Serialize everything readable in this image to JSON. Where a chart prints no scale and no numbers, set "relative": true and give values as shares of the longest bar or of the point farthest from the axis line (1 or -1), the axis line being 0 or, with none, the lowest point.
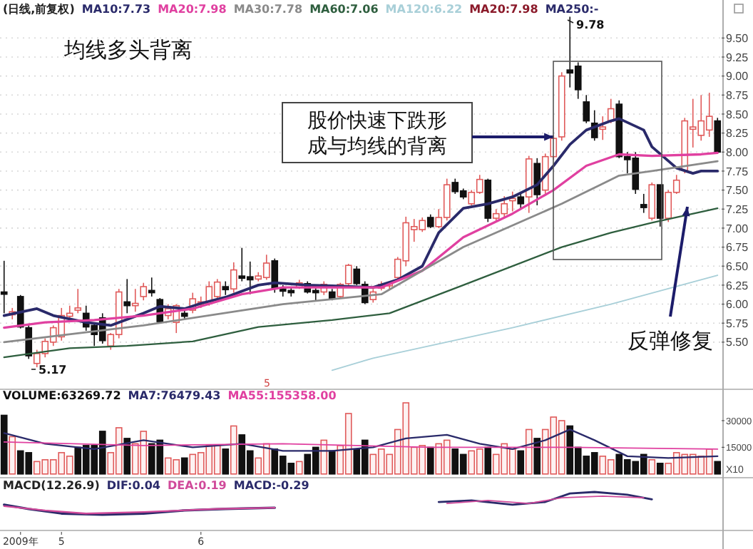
{
  "chart_data": [
    {
      "type": "candlestick",
      "categories": [
        null,
        null,
        null,
        null,
        null,
        null,
        null,
        null,
        null,
        null,
        null,
        null,
        null,
        null,
        null,
        null,
        null,
        null,
        null,
        null,
        null,
        null,
        null,
        null,
        null,
        null,
        null,
        null,
        null,
        null,
        null,
        null,
        null,
        null,
        null,
        null,
        null,
        null,
        null,
        null,
        null,
        null,
        null,
        null,
        null,
        null,
        null,
        null,
        null,
        null,
        null,
        null,
        null,
        null,
        null,
        null,
        null,
        null,
        null,
        null,
        null,
        null,
        null,
        null,
        null,
        null,
        null,
        null,
        null,
        null,
        null,
        null,
        null,
        null,
        null,
        null,
        null,
        null,
        null,
        null,
        null,
        null,
        null,
        null,
        null,
        null,
        null,
        null
      ],
      "ylim": [
        4.88,
        10.0
      ],
      "yticks": [
        {
          "value": 5.5,
          "label": "5.50"
        },
        {
          "value": 5.75,
          "label": "5.75"
        },
        {
          "value": 6,
          "label": "6.00"
        },
        {
          "value": 6.25,
          "label": "6.25"
        },
        {
          "value": 6.5,
          "label": "6.50"
        },
        {
          "value": 6.75,
          "label": "6.75"
        },
        {
          "value": 7,
          "label": "7.00"
        },
        {
          "value": 7.25,
          "label": "7.25"
        },
        {
          "value": 7.5,
          "label": "7.50"
        },
        {
          "value": 7.75,
          "label": "7.75"
        },
        {
          "value": 8,
          "label": "8.00"
        },
        {
          "value": 8.25,
          "label": "8.25"
        },
        {
          "value": 8.5,
          "label": "8.50"
        },
        {
          "value": 8.75,
          "label": "8.75"
        },
        {
          "value": 9,
          "label": "9.00"
        },
        {
          "value": 9.25,
          "label": "9.25"
        },
        {
          "value": 9.5,
          "label": "9.50"
        }
      ],
      "tick_labels": "y",
      "grid": "y",
      "legend": "top left",
      "ohlc": [
        [
          6.16,
          6.57,
          5.88,
          6.13
        ],
        [
          5.86,
          5.95,
          5.8,
          5.9
        ],
        [
          6.1,
          6.12,
          5.68,
          5.7
        ],
        [
          5.69,
          5.72,
          5.28,
          5.32
        ],
        [
          5.22,
          5.4,
          5.17,
          5.35
        ],
        [
          5.35,
          5.55,
          5.3,
          5.51
        ],
        [
          5.5,
          5.72,
          5.45,
          5.69
        ],
        [
          5.57,
          5.95,
          5.52,
          5.85
        ],
        [
          5.84,
          5.98,
          5.78,
          5.88
        ],
        [
          5.92,
          6.2,
          5.88,
          5.95
        ],
        [
          5.88,
          5.98,
          5.65,
          5.7
        ],
        [
          5.72,
          5.75,
          5.45,
          5.6
        ],
        [
          5.82,
          5.88,
          5.48,
          5.52
        ],
        [
          5.45,
          5.62,
          5.4,
          5.6
        ],
        [
          5.6,
          6.2,
          5.55,
          6.16
        ],
        [
          6.03,
          6.33,
          5.88,
          5.98
        ],
        [
          5.98,
          6.2,
          5.9,
          6.01
        ],
        [
          6.1,
          6.28,
          6.05,
          6.23
        ],
        [
          6.18,
          6.35,
          6.1,
          6.15
        ],
        [
          6.06,
          6.08,
          5.75,
          5.77
        ],
        [
          5.85,
          6.0,
          5.8,
          5.94
        ],
        [
          5.76,
          6.0,
          5.62,
          5.98
        ],
        [
          5.88,
          5.92,
          5.8,
          5.84
        ],
        [
          5.92,
          6.15,
          5.88,
          6.07
        ],
        [
          5.99,
          6.1,
          5.95,
          6.03
        ],
        [
          6.01,
          6.3,
          5.98,
          6.23
        ],
        [
          6.1,
          6.33,
          6.05,
          6.29
        ],
        [
          6.23,
          6.3,
          6.12,
          6.19
        ],
        [
          6.2,
          6.55,
          6.15,
          6.45
        ],
        [
          6.37,
          6.74,
          6.3,
          6.34
        ],
        [
          6.36,
          6.56,
          6.13,
          6.32
        ],
        [
          6.33,
          6.42,
          6.3,
          6.37
        ],
        [
          6.35,
          6.65,
          6.32,
          6.54
        ],
        [
          6.57,
          6.6,
          6.15,
          6.2
        ],
        [
          6.2,
          6.25,
          6.1,
          6.17
        ],
        [
          6.18,
          6.22,
          6.1,
          6.15
        ],
        [
          6.22,
          6.32,
          6.2,
          6.28
        ],
        [
          6.27,
          6.3,
          6.14,
          6.16
        ],
        [
          6.18,
          6.25,
          6.05,
          6.15
        ],
        [
          6.16,
          6.3,
          6.12,
          6.26
        ],
        [
          6.16,
          6.2,
          6.05,
          6.07
        ],
        [
          6.1,
          6.28,
          6.08,
          6.26
        ],
        [
          6.27,
          6.53,
          6.25,
          6.51
        ],
        [
          6.46,
          6.5,
          6.25,
          6.27
        ],
        [
          6.26,
          6.3,
          6.0,
          6.02
        ],
        [
          6.06,
          6.2,
          6.02,
          6.16
        ],
        [
          6.21,
          6.3,
          6.18,
          6.26
        ],
        [
          6.24,
          6.3,
          6.2,
          6.27
        ],
        [
          6.35,
          6.62,
          6.32,
          6.59
        ],
        [
          6.57,
          7.15,
          6.5,
          7.07
        ],
        [
          6.98,
          7.12,
          6.82,
          7.02
        ],
        [
          6.98,
          7.14,
          6.95,
          7.1
        ],
        [
          7.14,
          7.18,
          7.0,
          7.02
        ],
        [
          7.02,
          7.25,
          7.0,
          7.14
        ],
        [
          7.14,
          7.65,
          7.1,
          7.57
        ],
        [
          7.6,
          7.65,
          7.45,
          7.48
        ],
        [
          7.49,
          7.52,
          7.38,
          7.41
        ],
        [
          7.32,
          7.5,
          7.3,
          7.47
        ],
        [
          7.47,
          7.7,
          7.45,
          7.64
        ],
        [
          7.63,
          7.65,
          7.08,
          7.13
        ],
        [
          7.13,
          7.25,
          7.1,
          7.19
        ],
        [
          7.19,
          7.42,
          7.15,
          7.32
        ],
        [
          7.36,
          7.48,
          7.22,
          7.39
        ],
        [
          7.41,
          7.45,
          7.25,
          7.32
        ],
        [
          7.41,
          7.95,
          7.2,
          7.91
        ],
        [
          7.85,
          7.92,
          7.3,
          7.44
        ],
        [
          7.5,
          7.98,
          7.45,
          7.94
        ],
        [
          7.94,
          8.22,
          7.9,
          8.18
        ],
        [
          8.2,
          9.05,
          8.15,
          9.0
        ],
        [
          9.08,
          9.78,
          8.85,
          9.04
        ],
        [
          9.13,
          9.18,
          8.7,
          8.82
        ],
        [
          8.66,
          8.75,
          8.38,
          8.41
        ],
        [
          8.38,
          8.55,
          8.15,
          8.19
        ],
        [
          8.3,
          8.47,
          8.16,
          8.33
        ],
        [
          8.41,
          8.7,
          8.38,
          8.57
        ],
        [
          8.63,
          8.68,
          7.92,
          7.94
        ],
        [
          7.94,
          8.0,
          7.72,
          7.9
        ],
        [
          7.92,
          8.0,
          7.45,
          7.51
        ],
        [
          7.31,
          7.45,
          7.2,
          7.27
        ],
        [
          7.13,
          7.6,
          7.1,
          7.57
        ],
        [
          7.57,
          7.57,
          7.02,
          7.13
        ],
        [
          7.13,
          7.5,
          7.08,
          7.47
        ],
        [
          7.47,
          7.7,
          7.45,
          7.63
        ],
        [
          7.76,
          8.45,
          7.72,
          8.41
        ],
        [
          8.3,
          8.7,
          8.06,
          8.33
        ],
        [
          8.22,
          8.75,
          8.15,
          8.41
        ],
        [
          8.29,
          8.78,
          8.2,
          8.47
        ],
        [
          8.41,
          8.45,
          7.98,
          8.0
        ]
      ],
      "colors": [
        "#111111",
        "#e05a5a",
        "#111111",
        "#111111",
        "#e05a5a",
        "#e05a5a",
        "#e05a5a",
        "#e05a5a",
        "#e05a5a",
        "#e05a5a",
        "#111111",
        "#111111",
        "#111111",
        "#e05a5a",
        "#e05a5a",
        "#111111",
        "#e05a5a",
        "#e05a5a",
        "#111111",
        "#111111",
        "#e05a5a",
        "#e05a5a",
        "#111111",
        "#e05a5a",
        "#e05a5a",
        "#e05a5a",
        "#e05a5a",
        "#111111",
        "#e05a5a",
        "#111111",
        "#111111",
        "#e05a5a",
        "#e05a5a",
        "#111111",
        "#111111",
        "#111111",
        "#e05a5a",
        "#111111",
        "#111111",
        "#e05a5a",
        "#111111",
        "#e05a5a",
        "#e05a5a",
        "#111111",
        "#111111",
        "#e05a5a",
        "#e05a5a",
        "#e05a5a",
        "#e05a5a",
        "#e05a5a",
        "#e05a5a",
        "#e05a5a",
        "#111111",
        "#e05a5a",
        "#e05a5a",
        "#111111",
        "#111111",
        "#e05a5a",
        "#e05a5a",
        "#111111",
        "#e05a5a",
        "#e05a5a",
        "#e05a5a",
        "#111111",
        "#e05a5a",
        "#111111",
        "#e05a5a",
        "#e05a5a",
        "#e05a5a",
        "#111111",
        "#111111",
        "#111111",
        "#111111",
        "#e05a5a",
        "#e05a5a",
        "#111111",
        "#111111",
        "#111111",
        "#111111",
        "#e05a5a",
        "#111111",
        "#e05a5a",
        "#e05a5a",
        "#e05a5a",
        "#e05a5a",
        "#e05a5a",
        "#e05a5a",
        "#111111"
      ],
      "series": [
        {
          "type": "line",
          "name": "MA10:7.73",
          "color": "#2a2a6a",
          "values": [
            5.85,
            null,
            null,
            null,
            5.94,
            null,
            5.85,
            null,
            null,
            null,
            5.76,
            null,
            null,
            5.72,
            null,
            null,
            null,
            5.88,
            null,
            5.97,
            null,
            null,
            5.94,
            null,
            6.01,
            null,
            null,
            6.09,
            null,
            null,
            null,
            6.25,
            null,
            6.28,
            null,
            null,
            null,
            6.25,
            null,
            null,
            6.24,
            null,
            null,
            null,
            null,
            6.22,
            null,
            null,
            6.32,
            null,
            null,
            6.5,
            null,
            6.94,
            null,
            null,
            7.26,
            null,
            null,
            7.32,
            null,
            null,
            7.41,
            null,
            null,
            7.57,
            null,
            7.82,
            null,
            8.1,
            null,
            8.29,
            null,
            null,
            8.41,
            8.44,
            null,
            null,
            8.29,
            8.07,
            null,
            null,
            7.79,
            null,
            7.72,
            7.75,
            null,
            7.75
          ]
        },
        {
          "type": "line",
          "name": "MA20:7.98",
          "color": "#e040a0",
          "values": [
            5.69,
            null,
            null,
            null,
            null,
            5.76,
            null,
            null,
            null,
            null,
            null,
            5.79,
            null,
            null,
            null,
            null,
            null,
            5.85,
            null,
            null,
            null,
            null,
            null,
            5.94,
            null,
            null,
            null,
            null,
            null,
            6.13,
            null,
            null,
            null,
            null,
            6.22,
            null,
            null,
            null,
            null,
            null,
            6.22,
            null,
            null,
            null,
            null,
            null,
            6.22,
            null,
            null,
            null,
            null,
            6.44,
            null,
            null,
            null,
            null,
            6.88,
            null,
            null,
            null,
            null,
            null,
            7.19,
            null,
            null,
            null,
            null,
            7.5,
            null,
            null,
            null,
            7.82,
            null,
            null,
            null,
            7.97,
            null,
            null,
            null,
            7.95,
            null,
            null,
            null,
            null,
            null,
            7.97,
            null,
            7.99
          ]
        },
        {
          "type": "line",
          "name": "MA30:7.78",
          "color": "#8a8a8a",
          "values": [
            5.5,
            null,
            null,
            null,
            null,
            null,
            null,
            null,
            null,
            null,
            null,
            null,
            null,
            null,
            null,
            null,
            null,
            5.72,
            null,
            null,
            null,
            null,
            null,
            null,
            null,
            null,
            null,
            null,
            null,
            null,
            null,
            null,
            null,
            null,
            6.0,
            null,
            null,
            null,
            null,
            null,
            null,
            null,
            null,
            null,
            null,
            null,
            6.13,
            null,
            null,
            null,
            null,
            null,
            null,
            null,
            null,
            null,
            6.75,
            null,
            null,
            null,
            null,
            null,
            null,
            null,
            null,
            null,
            null,
            null,
            7.32,
            null,
            null,
            null,
            null,
            null,
            null,
            7.69,
            null,
            null,
            null,
            7.75,
            null,
            null,
            null,
            null,
            null,
            null,
            null,
            7.88
          ]
        },
        {
          "type": "line",
          "name": "MA60:7.06",
          "color": "#2e5e3e",
          "values": [
            5.3,
            null,
            null,
            null,
            null,
            null,
            null,
            null,
            5.42,
            null,
            null,
            null,
            null,
            null,
            null,
            5.45,
            null,
            null,
            null,
            null,
            null,
            null,
            null,
            5.51,
            null,
            null,
            null,
            null,
            null,
            null,
            null,
            5.7,
            null,
            null,
            null,
            null,
            null,
            null,
            null,
            null,
            5.79,
            null,
            null,
            null,
            null,
            null,
            null,
            5.88,
            null,
            null,
            null,
            null,
            null,
            null,
            null,
            null,
            6.25,
            null,
            null,
            null,
            null,
            null,
            null,
            null,
            null,
            null,
            null,
            null,
            6.75,
            null,
            null,
            null,
            null,
            null,
            6.94,
            null,
            null,
            null,
            null,
            7.07,
            null,
            null,
            null,
            null,
            null,
            null,
            null,
            7.26
          ]
        },
        {
          "type": "line",
          "name": "MA120:6.22",
          "color": "#a8cfd8",
          "values": [
            null,
            null,
            null,
            null,
            null,
            null,
            null,
            null,
            null,
            null,
            null,
            null,
            null,
            null,
            null,
            null,
            null,
            null,
            null,
            null,
            null,
            null,
            null,
            null,
            null,
            null,
            null,
            null,
            null,
            null,
            null,
            null,
            null,
            null,
            null,
            null,
            null,
            null,
            null,
            null,
            5.13,
            null,
            null,
            null,
            null,
            5.29,
            null,
            null,
            null,
            null,
            null,
            null,
            null,
            null,
            null,
            null,
            null,
            null,
            null,
            null,
            null,
            null,
            5.69,
            null,
            null,
            null,
            null,
            null,
            null,
            null,
            null,
            null,
            null,
            null,
            6.0,
            null,
            null,
            null,
            null,
            null,
            null,
            null,
            null,
            null,
            null,
            null,
            null,
            6.38
          ]
        }
      ],
      "annotations": [
        "(日线,前复权)",
        "MA20:7.98",
        "MA250:-",
        "均线多头背离",
        "股价快速下跌形成与均线的背离",
        "反弹修复",
        "9.78",
        "5.17"
      ]
    },
    {
      "type": "bar",
      "categories": [
        null,
        null,
        null,
        null,
        null,
        null,
        null,
        null,
        null,
        null,
        null,
        null,
        null,
        null,
        null,
        null,
        null,
        null,
        null,
        null,
        null,
        null,
        null,
        null,
        null,
        null,
        null,
        null,
        null,
        null,
        null,
        null,
        null,
        null,
        null,
        null,
        null,
        null,
        null,
        null,
        null,
        null,
        null,
        null,
        null,
        null,
        null,
        null,
        null,
        null,
        null,
        null,
        null,
        null,
        null,
        null,
        null,
        null,
        null,
        null,
        null,
        null,
        null,
        null,
        null,
        null,
        null,
        null,
        null,
        null,
        null,
        null,
        null,
        null,
        null,
        null,
        null,
        null,
        null,
        null,
        null,
        null,
        null,
        null,
        null,
        null,
        null,
        null
      ],
      "ylim": [
        0,
        40000
      ],
      "yticks": [
        15000,
        30000
      ],
      "ylabel": "X10",
      "tick_labels": "y",
      "legend": "top left",
      "series": [
        {
          "name": "VOLUME:63269.72",
          "values": [
            33000,
            21000,
            13000,
            12000,
            7000,
            8000,
            8000,
            12000,
            10000,
            15000,
            16000,
            16000,
            24000,
            12000,
            26000,
            20000,
            17000,
            24000,
            17000,
            19000,
            9000,
            8000,
            9000,
            11000,
            12000,
            16000,
            16000,
            14000,
            27000,
            22000,
            13000,
            9000,
            17000,
            14000,
            10000,
            6000,
            7000,
            11000,
            15000,
            19000,
            13000,
            16000,
            34000,
            14000,
            19000,
            11000,
            14000,
            11000,
            25000,
            40000,
            15000,
            16000,
            15000,
            17000,
            19000,
            14000,
            11000,
            13000,
            14000,
            15000,
            11000,
            17000,
            14000,
            13000,
            25000,
            20000,
            25000,
            32000,
            30000,
            27000,
            15000,
            10000,
            12000,
            10000,
            8000,
            11000,
            8000,
            7000,
            11000,
            8000,
            6000,
            6000,
            12000,
            11000,
            11000,
            10000,
            14000,
            7000
          ],
          "colors": [
            "#111111",
            "#e05a5a",
            "#111111",
            "#111111",
            "#e05a5a",
            "#e05a5a",
            "#e05a5a",
            "#e05a5a",
            "#e05a5a",
            "#111111",
            "#111111",
            "#111111",
            "#111111",
            "#e05a5a",
            "#e05a5a",
            "#111111",
            "#e05a5a",
            "#e05a5a",
            "#111111",
            "#111111",
            "#e05a5a",
            "#e05a5a",
            "#111111",
            "#e05a5a",
            "#e05a5a",
            "#e05a5a",
            "#e05a5a",
            "#111111",
            "#e05a5a",
            "#111111",
            "#111111",
            "#e05a5a",
            "#e05a5a",
            "#111111",
            "#111111",
            "#111111",
            "#e05a5a",
            "#111111",
            "#111111",
            "#e05a5a",
            "#111111",
            "#e05a5a",
            "#e05a5a",
            "#111111",
            "#111111",
            "#e05a5a",
            "#e05a5a",
            "#e05a5a",
            "#e05a5a",
            "#e05a5a",
            "#e05a5a",
            "#e05a5a",
            "#111111",
            "#e05a5a",
            "#e05a5a",
            "#111111",
            "#111111",
            "#e05a5a",
            "#e05a5a",
            "#111111",
            "#e05a5a",
            "#e05a5a",
            "#e05a5a",
            "#111111",
            "#e05a5a",
            "#111111",
            "#e05a5a",
            "#e05a5a",
            "#e05a5a",
            "#111111",
            "#111111",
            "#111111",
            "#111111",
            "#e05a5a",
            "#e05a5a",
            "#111111",
            "#111111",
            "#111111",
            "#111111",
            "#e05a5a",
            "#111111",
            "#e05a5a",
            "#e05a5a",
            "#e05a5a",
            "#e05a5a",
            "#e05a5a",
            "#e05a5a",
            "#111111"
          ]
        },
        {
          "type": "line",
          "name": "MA7:76479.43",
          "color": "#2a2a6a",
          "values": [
            23000,
            null,
            null,
            null,
            null,
            17000,
            null,
            null,
            null,
            null,
            null,
            14000,
            null,
            null,
            null,
            null,
            null,
            19000,
            null,
            null,
            null,
            null,
            null,
            15000,
            null,
            null,
            null,
            null,
            null,
            17000,
            null,
            null,
            null,
            null,
            13000,
            null,
            null,
            null,
            null,
            null,
            13000,
            null,
            null,
            null,
            null,
            15000,
            null,
            null,
            null,
            20000,
            null,
            null,
            null,
            null,
            22000,
            null,
            null,
            null,
            17000,
            null,
            null,
            null,
            14000,
            null,
            null,
            null,
            19000,
            null,
            null,
            25000,
            null,
            null,
            19000,
            null,
            null,
            null,
            10000,
            null,
            null,
            null,
            null,
            9000,
            null,
            null,
            null,
            null,
            null,
            10000
          ]
        },
        {
          "type": "line",
          "name": "MA55:155358.00",
          "color": "#e040a0",
          "values": [
            18000,
            null,
            null,
            null,
            null,
            null,
            null,
            null,
            null,
            null,
            null,
            null,
            null,
            null,
            null,
            null,
            null,
            16000,
            null,
            null,
            null,
            null,
            null,
            null,
            null,
            null,
            null,
            null,
            null,
            null,
            null,
            null,
            null,
            null,
            17000,
            null,
            null,
            null,
            null,
            null,
            null,
            null,
            null,
            null,
            null,
            null,
            null,
            null,
            null,
            null,
            null,
            null,
            15000,
            null,
            null,
            null,
            null,
            null,
            null,
            null,
            null,
            null,
            null,
            null,
            null,
            null,
            null,
            null,
            null,
            15000,
            null,
            null,
            null,
            null,
            null,
            null,
            null,
            null,
            null,
            null,
            null,
            null,
            null,
            null,
            null,
            null,
            null,
            14000
          ]
        }
      ],
      "annotations": [
        "5"
      ]
    },
    {
      "type": "line",
      "relative": true,
      "categories": [
        null,
        null,
        "2009年",
        null,
        null,
        null,
        null,
        "5",
        null,
        null,
        null,
        null,
        null,
        null,
        null,
        null,
        null,
        null,
        null,
        null,
        null,
        null,
        null,
        null,
        "6",
        null,
        null,
        null,
        null,
        null,
        null,
        null,
        null,
        null,
        null,
        null,
        null,
        null,
        null,
        null,
        null,
        null,
        null,
        null,
        null,
        null,
        null,
        null,
        null,
        null,
        null,
        null,
        null,
        null,
        null,
        null,
        null,
        null,
        null,
        null,
        null,
        null,
        null,
        null,
        null,
        null,
        null,
        null,
        null,
        null,
        null,
        null,
        null,
        null,
        null,
        null,
        null,
        null,
        null,
        null,
        null,
        null,
        null,
        null,
        null,
        null,
        null,
        null
      ],
      "tick_labels": "x",
      "legend": "top left",
      "series": [
        {
          "name": "DIF:0.04",
          "color": "#2a2a6a",
          "values": [
            0.67,
            null,
            null,
            0.56,
            null,
            null,
            null,
            0.44,
            null,
            null,
            null,
            null,
            0.41,
            null,
            null,
            null,
            null,
            0.44,
            null,
            null,
            null,
            null,
            0.52,
            null,
            null,
            null,
            null,
            0.56,
            null,
            null,
            null,
            null,
            null,
            0.59,
            null,
            null,
            null,
            null,
            null,
            null,
            null,
            null,
            null,
            null,
            null,
            null,
            null,
            null,
            null,
            null,
            null,
            null,
            null,
            null,
            null,
            null,
            null,
            null,
            null,
            null,
            null,
            null,
            null,
            null,
            null,
            null,
            null,
            null,
            null,
            null,
            null,
            null,
            null,
            null,
            null,
            null,
            null,
            null,
            null,
            null,
            null,
            null,
            null,
            null,
            null,
            null,
            null,
            null
          ]
        },
        {
          "color": "#2a2a6a",
          "values": [
            null,
            null,
            null,
            null,
            null,
            null,
            null,
            null,
            null,
            null,
            null,
            null,
            null,
            null,
            null,
            null,
            null,
            null,
            null,
            null,
            null,
            null,
            null,
            null,
            null,
            null,
            null,
            null,
            null,
            null,
            null,
            null,
            null,
            null,
            null,
            null,
            null,
            null,
            null,
            null,
            null,
            null,
            null,
            null,
            null,
            null,
            null,
            null,
            null,
            null,
            null,
            null,
            null,
            0.74,
            null,
            null,
            null,
            0.78,
            null,
            null,
            null,
            null,
            0.67,
            null,
            null,
            null,
            0.74,
            null,
            null,
            0.96,
            null,
            null,
            1,
            null,
            null,
            null,
            0.93,
            null,
            null,
            0.81,
            null,
            null,
            null,
            null,
            null,
            null,
            null,
            null
          ]
        },
        {
          "name": "DEA:0.19",
          "color": "#d04a9a",
          "values": [
            0.63,
            null,
            null,
            null,
            null,
            0.52,
            null,
            null,
            null,
            null,
            0.44,
            null,
            null,
            null,
            null,
            null,
            null,
            0.48,
            null,
            null,
            null,
            null,
            null,
            null,
            null,
            null,
            0.56,
            null,
            null,
            null,
            null,
            null,
            null,
            0.59,
            null,
            null,
            null,
            null,
            null,
            null,
            null,
            null,
            null,
            null,
            null,
            null,
            null,
            null,
            null,
            null,
            null,
            null,
            null,
            null,
            null,
            null,
            null,
            null,
            null,
            null,
            null,
            null,
            null,
            null,
            null,
            null,
            null,
            null,
            null,
            null,
            null,
            null,
            null,
            null,
            null,
            null,
            null,
            null,
            null,
            null,
            null,
            null,
            null,
            null,
            null,
            null,
            null,
            null
          ]
        },
        {
          "color": "#d04a9a",
          "values": [
            null,
            null,
            null,
            null,
            null,
            null,
            null,
            null,
            null,
            null,
            null,
            null,
            null,
            null,
            null,
            null,
            null,
            null,
            null,
            null,
            null,
            null,
            null,
            null,
            null,
            null,
            null,
            null,
            null,
            null,
            null,
            null,
            null,
            null,
            null,
            null,
            null,
            null,
            null,
            null,
            null,
            null,
            null,
            null,
            null,
            null,
            null,
            null,
            null,
            null,
            null,
            null,
            null,
            null,
            0.7,
            null,
            null,
            null,
            null,
            0.78,
            null,
            null,
            null,
            null,
            0.7,
            null,
            null,
            null,
            0.85,
            null,
            null,
            null,
            null,
            0.89,
            null,
            null,
            null,
            null,
            0.85,
            null,
            null,
            null,
            null,
            null,
            null,
            null,
            null,
            null
          ]
        }
      ],
      "annotations": [
        "MACD(12.26.9)",
        "MACD:-0.29"
      ]
    }
  ]
}
